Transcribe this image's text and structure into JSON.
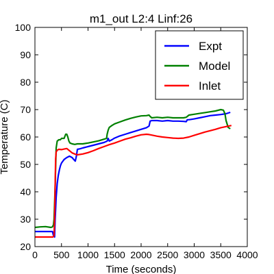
{
  "chart_data": {
    "type": "line",
    "title": "m1_out L2:4 Linf:26",
    "xlabel": "Time (seconds)",
    "ylabel": "Temperature (C)",
    "xlim": [
      0,
      4000
    ],
    "ylim": [
      20,
      100
    ],
    "xticks": [
      "0",
      "500",
      "1000",
      "1500",
      "2000",
      "2500",
      "3000",
      "3500",
      "4000"
    ],
    "yticks": [
      "20",
      "30",
      "40",
      "50",
      "60",
      "70",
      "80",
      "90",
      "100"
    ],
    "grid": false,
    "legend_position": "top-right",
    "series": [
      {
        "name": "Expt",
        "color": "#0000ff",
        "x": [
          0,
          330,
          350,
          370,
          380,
          400,
          420,
          440,
          460,
          480,
          500,
          550,
          600,
          650,
          700,
          730,
          760,
          780,
          800,
          850,
          900,
          1000,
          1100,
          1200,
          1300,
          1360,
          1380,
          1400,
          1450,
          1500,
          1600,
          1700,
          1800,
          1900,
          2000,
          2100,
          2150,
          2170,
          2200,
          2300,
          2400,
          2500,
          2600,
          2700,
          2800,
          2850,
          2870,
          2900,
          3000,
          3100,
          3200,
          3300,
          3400,
          3500,
          3600,
          3680
        ],
        "y": [
          25.5,
          25.5,
          24,
          23.5,
          30,
          38,
          43,
          46,
          48,
          49.5,
          50.5,
          51.8,
          52.5,
          53,
          52.5,
          51.8,
          51.2,
          53,
          55.5,
          55.7,
          56,
          56.5,
          57,
          57.5,
          58,
          58.5,
          59.5,
          58.5,
          59,
          59.6,
          60.4,
          61,
          61.6,
          62.2,
          62.8,
          63.4,
          64,
          65.8,
          66,
          66,
          65.8,
          66,
          65.8,
          65.8,
          65.7,
          65.6,
          66.3,
          66.3,
          66.6,
          67,
          67.4,
          67.8,
          68,
          68.2,
          68.5,
          69
        ]
      },
      {
        "name": "Model",
        "color": "#008000",
        "x": [
          0,
          100,
          200,
          300,
          330,
          350,
          360,
          380,
          400,
          420,
          450,
          480,
          500,
          550,
          580,
          600,
          620,
          640,
          660,
          700,
          750,
          800,
          900,
          1000,
          1100,
          1200,
          1300,
          1350,
          1360,
          1380,
          1400,
          1450,
          1500,
          1600,
          1700,
          1800,
          1900,
          2000,
          2100,
          2150,
          2170,
          2200,
          2300,
          2400,
          2500,
          2600,
          2700,
          2800,
          2850,
          2870,
          2900,
          3000,
          3100,
          3200,
          3300,
          3400,
          3500,
          3550,
          3580,
          3600,
          3640,
          3680
        ],
        "y": [
          27,
          27.2,
          27.3,
          27,
          27.2,
          28,
          30,
          42,
          56,
          58.5,
          59,
          59,
          59.5,
          59.5,
          61,
          61,
          60,
          58.5,
          57.8,
          57.5,
          57.3,
          57.5,
          57.5,
          57.8,
          58.2,
          58.6,
          59.2,
          59.5,
          61,
          62.5,
          63.5,
          64.2,
          64.8,
          65.5,
          66.2,
          66.8,
          67.3,
          67.7,
          67.8,
          68,
          67.5,
          67,
          67.2,
          67,
          67.2,
          67,
          67,
          67,
          67.2,
          67.5,
          68,
          68.3,
          68.6,
          68.9,
          69.2,
          69.5,
          70,
          69.8,
          68.5,
          66,
          63.5,
          63
        ]
      },
      {
        "name": "Inlet",
        "color": "#ff0000",
        "x": [
          0,
          300,
          340,
          360,
          370,
          380,
          390,
          400,
          420,
          450,
          500,
          550,
          600,
          650,
          700,
          750,
          800,
          900,
          1000,
          1100,
          1200,
          1300,
          1400,
          1500,
          1600,
          1700,
          1800,
          1900,
          2000,
          2100,
          2150,
          2200,
          2300,
          2400,
          2500,
          2600,
          2700,
          2800,
          2900,
          3000,
          3100,
          3200,
          3300,
          3400,
          3500,
          3600,
          3700
        ],
        "y": [
          23.5,
          23.5,
          23.5,
          24,
          30,
          42,
          52,
          54.5,
          55.2,
          55.5,
          55.4,
          55.6,
          55.8,
          55,
          54.2,
          53.8,
          53.5,
          53.8,
          54.3,
          55,
          55.8,
          56.5,
          57.2,
          57.8,
          58.5,
          59.2,
          59.7,
          60.3,
          60.8,
          61,
          60.9,
          60.7,
          60.3,
          60,
          59.8,
          59.6,
          59.5,
          59.6,
          60,
          60.6,
          61.2,
          61.8,
          62.3,
          62.8,
          63.4,
          63.8,
          64.2
        ]
      }
    ]
  }
}
